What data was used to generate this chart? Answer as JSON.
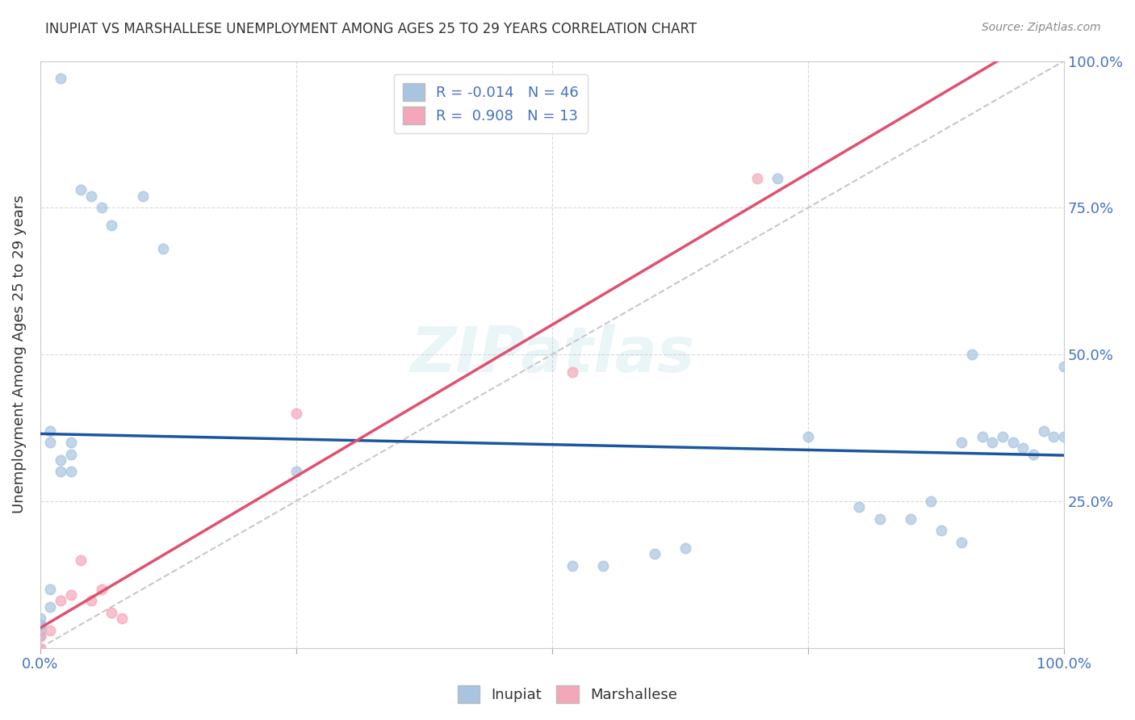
{
  "title": "INUPIAT VS MARSHALLESE UNEMPLOYMENT AMONG AGES 25 TO 29 YEARS CORRELATION CHART",
  "source": "Source: ZipAtlas.com",
  "ylabel": "Unemployment Among Ages 25 to 29 years",
  "xlim": [
    0.0,
    1.0
  ],
  "ylim": [
    0.0,
    1.0
  ],
  "xticks": [
    0.0,
    0.25,
    0.5,
    0.75,
    1.0
  ],
  "yticks": [
    0.0,
    0.25,
    0.5,
    0.75,
    1.0
  ],
  "xticklabels": [
    "0.0%",
    "",
    "",
    "",
    "100.0%"
  ],
  "yticklabels_right": [
    "",
    "25.0%",
    "50.0%",
    "75.0%",
    "100.0%"
  ],
  "inupiat_color": "#a8c4e0",
  "marshallese_color": "#f4a7b9",
  "inupiat_line_color": "#1a56a0",
  "marshallese_line_color": "#e05070",
  "diagonal_color": "#c8c8c8",
  "R_inupiat": -0.014,
  "N_inupiat": 46,
  "R_marshallese": 0.908,
  "N_marshallese": 13,
  "inupiat_x": [
    0.02,
    0.04,
    0.05,
    0.06,
    0.07,
    0.1,
    0.12,
    0.01,
    0.01,
    0.02,
    0.02,
    0.03,
    0.03,
    0.03,
    0.0,
    0.0,
    0.0,
    0.01,
    0.01,
    0.0,
    0.0,
    0.25,
    0.52,
    0.55,
    0.6,
    0.63,
    0.72,
    0.75,
    0.8,
    0.82,
    0.85,
    0.87,
    0.88,
    0.9,
    0.9,
    0.91,
    0.92,
    0.93,
    0.94,
    0.95,
    0.96,
    0.97,
    0.98,
    0.99,
    1.0,
    1.0
  ],
  "inupiat_y": [
    0.97,
    0.78,
    0.77,
    0.75,
    0.72,
    0.77,
    0.68,
    0.37,
    0.35,
    0.32,
    0.3,
    0.35,
    0.33,
    0.3,
    0.05,
    0.04,
    0.03,
    0.1,
    0.07,
    0.04,
    0.02,
    0.3,
    0.14,
    0.14,
    0.16,
    0.17,
    0.8,
    0.36,
    0.24,
    0.22,
    0.22,
    0.25,
    0.2,
    0.18,
    0.35,
    0.5,
    0.36,
    0.35,
    0.36,
    0.35,
    0.34,
    0.33,
    0.37,
    0.36,
    0.48,
    0.36
  ],
  "marshallese_x": [
    0.0,
    0.0,
    0.01,
    0.02,
    0.03,
    0.04,
    0.05,
    0.06,
    0.07,
    0.08,
    0.25,
    0.52,
    0.7
  ],
  "marshallese_y": [
    0.0,
    0.02,
    0.03,
    0.08,
    0.09,
    0.15,
    0.08,
    0.1,
    0.06,
    0.05,
    0.4,
    0.47,
    0.8
  ],
  "background_color": "#ffffff",
  "grid_color": "#d0d0d0",
  "title_color": "#333333",
  "axis_label_color": "#333333",
  "tick_color": "#4472c4",
  "legend_text_color": "#4472c4",
  "watermark": "ZIPatlas",
  "marker_size": 80
}
